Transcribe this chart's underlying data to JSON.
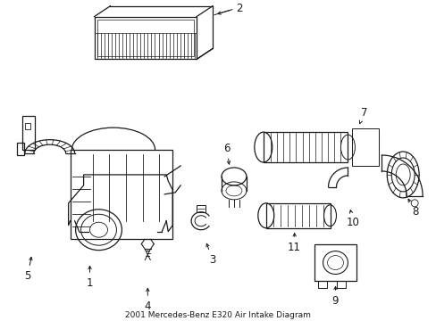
{
  "title": "2001 Mercedes-Benz E320 Air Intake Diagram",
  "bg_color": "#ffffff",
  "line_color": "#1a1a1a",
  "label_color": "#1a1a1a",
  "font_size": 8.5,
  "line_width": 0.9,
  "fig_w": 4.89,
  "fig_h": 3.6,
  "dpi": 100
}
